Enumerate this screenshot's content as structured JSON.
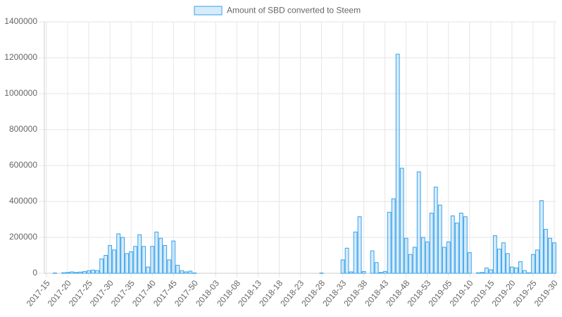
{
  "chart_data": {
    "type": "bar",
    "series": [
      {
        "name": "Amount of SBD converted to Steem",
        "color": "rgba(54,162,235,0.2)",
        "border_color": "#36a2eb",
        "values": [
          0,
          0,
          2000,
          0,
          3000,
          5000,
          8000,
          5000,
          7000,
          10000,
          15000,
          18000,
          15000,
          80000,
          100000,
          155000,
          130000,
          220000,
          200000,
          110000,
          120000,
          150000,
          215000,
          150000,
          35000,
          150000,
          230000,
          195000,
          155000,
          75000,
          180000,
          45000,
          15000,
          8000,
          12000,
          2000,
          0,
          0,
          0,
          0,
          0,
          0,
          0,
          0,
          0,
          0,
          0,
          0,
          0,
          0,
          0,
          0,
          0,
          0,
          0,
          0,
          0,
          0,
          0,
          0,
          0,
          0,
          0,
          0,
          0,
          2000,
          0,
          0,
          0,
          0,
          75000,
          140000,
          8000,
          230000,
          315000,
          10000,
          0,
          125000,
          60000,
          5000,
          10000,
          340000,
          415000,
          1220000,
          585000,
          195000,
          105000,
          145000,
          565000,
          200000,
          175000,
          335000,
          480000,
          380000,
          145000,
          175000,
          320000,
          280000,
          335000,
          315000,
          115000,
          0,
          3000,
          5000,
          30000,
          20000,
          210000,
          135000,
          170000,
          110000,
          35000,
          30000,
          65000,
          15000,
          3000,
          105000,
          130000,
          405000,
          245000,
          195000,
          170000
        ]
      }
    ],
    "categories": [
      "2017-15",
      null,
      null,
      null,
      null,
      "2017-20",
      null,
      null,
      null,
      null,
      "2017-25",
      null,
      null,
      null,
      null,
      "2017-30",
      null,
      null,
      null,
      null,
      "2017-35",
      null,
      null,
      null,
      null,
      "2017-40",
      null,
      null,
      null,
      null,
      "2017-45",
      null,
      null,
      null,
      null,
      "2017-50",
      null,
      null,
      null,
      null,
      "2018-03",
      null,
      null,
      null,
      null,
      "2018-08",
      null,
      null,
      null,
      null,
      "2018-13",
      null,
      null,
      null,
      null,
      "2018-18",
      null,
      null,
      null,
      null,
      "2018-23",
      null,
      null,
      null,
      null,
      "2018-28",
      null,
      null,
      null,
      null,
      "2018-33",
      null,
      null,
      null,
      null,
      "2018-38",
      null,
      null,
      null,
      null,
      "2018-43",
      null,
      null,
      null,
      null,
      "2018-48",
      null,
      null,
      null,
      null,
      "2018-53",
      null,
      null,
      null,
      null,
      "2019-05",
      null,
      null,
      null,
      null,
      "2019-10",
      null,
      null,
      null,
      null,
      "2019-15",
      null,
      null,
      null,
      null,
      "2019-20",
      null,
      null,
      null,
      null,
      "2019-25",
      null,
      null,
      null,
      null,
      "2019-30"
    ],
    "ylim": [
      0,
      1400000
    ],
    "yticks": [
      0,
      200000,
      400000,
      600000,
      800000,
      1000000,
      1200000,
      1400000
    ],
    "grid": true,
    "legend": "top"
  }
}
